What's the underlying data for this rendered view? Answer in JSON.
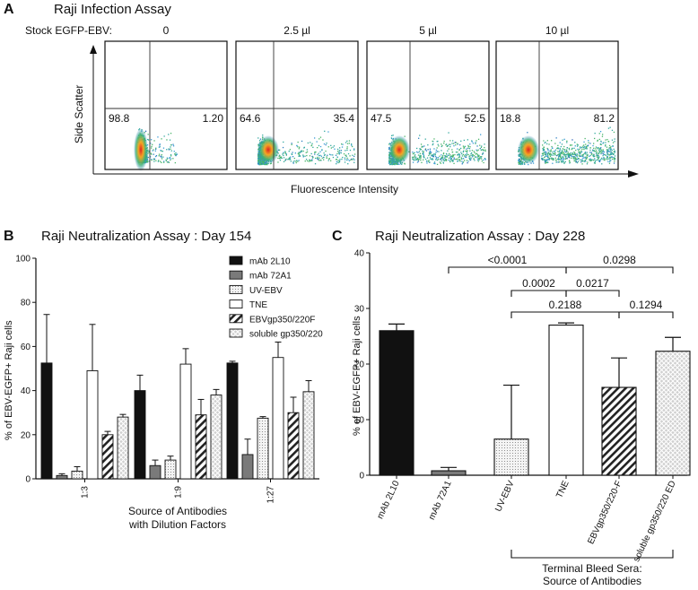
{
  "panel_a": {
    "letter": "A",
    "title": "Raji Infection Assay",
    "stock_label": "Stock EGFP-EBV:",
    "y_axis_label": "Side Scatter",
    "x_axis_label": "Fluorescence Intensity",
    "plots": [
      {
        "dose": "0",
        "left_pct": "98.8",
        "right_pct": "1.20"
      },
      {
        "dose": "2.5 µl",
        "left_pct": "64.6",
        "right_pct": "35.4"
      },
      {
        "dose": "5 µl",
        "left_pct": "47.5",
        "right_pct": "52.5"
      },
      {
        "dose": "10 µl",
        "left_pct": "18.8",
        "right_pct": "81.2"
      }
    ]
  },
  "chart_data": [
    {
      "type": "bar",
      "panel": "B",
      "title": "Raji Neutralization Assay : Day 154",
      "xlabel": "Source of Antibodies\nwith Dilution Factors",
      "xlabel_lines": [
        "Source of Antibodies",
        "with Dilution Factors"
      ],
      "ylabel": "% of EBV-EGFP+ Raji cells",
      "ylim": [
        0,
        100
      ],
      "yticks": [
        "0",
        "20",
        "40",
        "60",
        "80",
        "100"
      ],
      "categories": [
        "1:3",
        "1:9",
        "1:27"
      ],
      "series": [
        {
          "name": "mAb 2L10",
          "values": [
            52.5,
            40,
            52.5
          ],
          "errors": [
            22,
            7,
            0.8
          ],
          "fill": "#111111",
          "pattern": "solid"
        },
        {
          "name": "mAb 72A1",
          "values": [
            1.5,
            6,
            11
          ],
          "errors": [
            0.8,
            2.5,
            7
          ],
          "fill": "#7a7a7a",
          "pattern": "solid"
        },
        {
          "name": "UV-EBV",
          "values": [
            3.5,
            8.5,
            27.5
          ],
          "errors": [
            2,
            1.8,
            0.7
          ],
          "fill": "#f2f2f2",
          "pattern": "dots"
        },
        {
          "name": "TNE",
          "values": [
            49,
            52,
            55
          ],
          "errors": [
            21,
            7,
            7
          ],
          "fill": "#ffffff",
          "pattern": "none"
        },
        {
          "name": "EBVgp350/220F",
          "values": [
            20,
            29,
            30
          ],
          "errors": [
            1.5,
            7,
            7
          ],
          "fill": "#ffffff",
          "pattern": "hatch"
        },
        {
          "name": "soluble gp350/220",
          "values": [
            28,
            38,
            39.5
          ],
          "errors": [
            1.2,
            2.5,
            5
          ],
          "fill": "#d9d9d9",
          "pattern": "cross"
        }
      ],
      "legend": "top-right"
    },
    {
      "type": "bar",
      "panel": "C",
      "title": "Raji Neutralization Assay : Day 228",
      "ylabel": "% of EBV-EGFP+ Raji cells",
      "ylim": [
        0,
        40
      ],
      "yticks": [
        "0",
        "10",
        "20",
        "30",
        "40"
      ],
      "categories": [
        "mAb 2L10",
        "mAb 72A1",
        "UV-EBV",
        "TNE",
        "EBVgp350/220-F",
        "soluble gp350/220 ED"
      ],
      "values": [
        26,
        0.8,
        6.5,
        27,
        15.8,
        22.3
      ],
      "errors": [
        1.2,
        0.6,
        9.7,
        0.4,
        5.3,
        2.5
      ],
      "patterns": [
        "solid-black",
        "solid-gray",
        "dots",
        "none",
        "hatch",
        "cross"
      ],
      "comparisons": [
        {
          "from": "mAb 72A1",
          "to": "TNE",
          "label": "<0.0001"
        },
        {
          "from": "TNE",
          "to": "soluble gp350/220 ED",
          "label": "0.0298"
        },
        {
          "from": "UV-EBV",
          "to": "TNE",
          "label": "0.0002"
        },
        {
          "from": "TNE",
          "to": "EBVgp350/220-F",
          "label": "0.0217"
        },
        {
          "from": "UV-EBV",
          "to": "EBVgp350/220-F",
          "label": "0.2188"
        },
        {
          "from": "EBVgp350/220-F",
          "to": "soluble gp350/220 ED",
          "label": "0.1294"
        }
      ],
      "group_bracket": {
        "from": "UV-EBV",
        "to": "soluble gp350/220 ED",
        "label_lines": [
          "Terminal Bleed Sera:",
          "Source of Antibodies"
        ]
      }
    }
  ]
}
